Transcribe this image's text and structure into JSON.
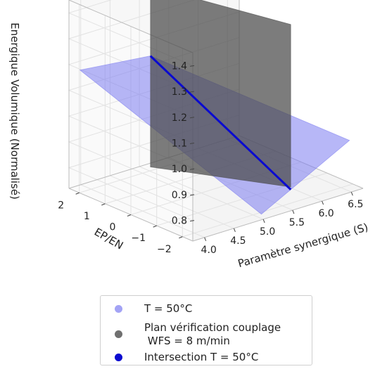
{
  "chart_data": {
    "type": "surface3d",
    "title": "",
    "xlabel": "Paramètre synergique (S)",
    "ylabel": "EP/EN",
    "zlabel": "Energique Volumique (Normalisé)",
    "xticks": [
      "4.0",
      "4.5",
      "5.0",
      "5.5",
      "6.0",
      "6.5"
    ],
    "yticks": [
      "2",
      "1",
      "0",
      "−1",
      "−2"
    ],
    "zticks": [
      "0.8",
      "0.9",
      "1.0",
      "1.1",
      "1.2",
      "1.3",
      "1.4"
    ],
    "xlim": [
      3.8,
      6.7
    ],
    "ylim": [
      -2.4,
      2.4
    ],
    "zlim": [
      0.72,
      1.45
    ],
    "grid": true,
    "legend_position": "below",
    "series": [
      {
        "name": "T = 50°C",
        "kind": "plane",
        "color": "#7b7bf0",
        "corners": [
          {
            "x": 3.9,
            "y": 2.2,
            "z": 1.18
          },
          {
            "x": 5.1,
            "y": 2.2,
            "z": 1.15
          },
          {
            "x": 6.6,
            "y": -2.1,
            "z": 0.9
          },
          {
            "x": 5.1,
            "y": -2.1,
            "z": 0.72
          }
        ]
      },
      {
        "name": "Plan vérification couplage\n WFS = 8 m/min",
        "kind": "plane",
        "color": "#4a4a4a",
        "corners": [
          {
            "x": 5.1,
            "y": 2.2,
            "z": 1.42
          },
          {
            "x": 5.6,
            "y": -2.1,
            "z": 1.42
          },
          {
            "x": 5.6,
            "y": -2.1,
            "z": 0.79
          },
          {
            "x": 5.1,
            "y": 2.2,
            "z": 0.72
          }
        ]
      },
      {
        "name": "Intersection T = 50°C",
        "kind": "line",
        "color": "#0a0ad0",
        "points": [
          {
            "x": 5.1,
            "y": 2.2,
            "z": 1.15
          },
          {
            "x": 5.6,
            "y": -2.1,
            "z": 0.78
          }
        ]
      }
    ]
  }
}
